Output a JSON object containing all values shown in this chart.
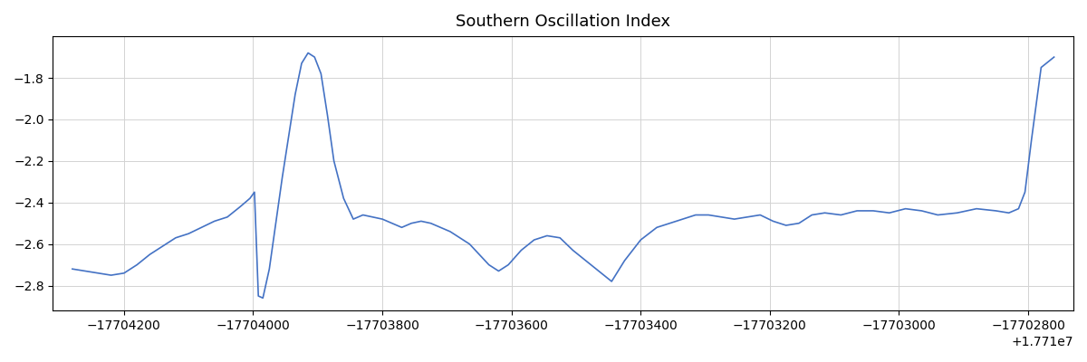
{
  "title": "Southern Oscillation Index",
  "line_color": "#4472c4",
  "xlim": [
    5690,
    7270
  ],
  "ylim": [
    -2.92,
    -1.6
  ],
  "y_ticks": [
    -2.8,
    -2.6,
    -2.4,
    -2.2,
    -2.0,
    -1.8
  ],
  "x_ticks": [
    5800,
    6000,
    6200,
    6400,
    6600,
    6800,
    7000,
    7200
  ],
  "offset_text": "+1.771e7",
  "x": [
    5720,
    5740,
    5760,
    5780,
    5800,
    5820,
    5840,
    5860,
    5880,
    5900,
    5920,
    5940,
    5960,
    5980,
    5995,
    6002,
    6008,
    6015,
    6025,
    6035,
    6045,
    6055,
    6065,
    6075,
    6085,
    6095,
    6105,
    6115,
    6125,
    6140,
    6155,
    6170,
    6185,
    6200,
    6215,
    6230,
    6245,
    6260,
    6275,
    6290,
    6305,
    6320,
    6335,
    6350,
    6365,
    6380,
    6395,
    6415,
    6435,
    6455,
    6475,
    6495,
    6515,
    6535,
    6555,
    6575,
    6600,
    6625,
    6645,
    6665,
    6685,
    6705,
    6725,
    6745,
    6765,
    6785,
    6805,
    6825,
    6845,
    6865,
    6885,
    6910,
    6935,
    6960,
    6985,
    7010,
    7035,
    7060,
    7090,
    7120,
    7150,
    7170,
    7185,
    7195,
    7205,
    7220,
    7240
  ],
  "y": [
    -2.72,
    -2.73,
    -2.74,
    -2.75,
    -2.74,
    -2.7,
    -2.65,
    -2.61,
    -2.57,
    -2.55,
    -2.52,
    -2.49,
    -2.47,
    -2.42,
    -2.38,
    -2.35,
    -2.85,
    -2.86,
    -2.72,
    -2.5,
    -2.28,
    -2.08,
    -1.88,
    -1.73,
    -1.68,
    -1.7,
    -1.78,
    -1.98,
    -2.2,
    -2.38,
    -2.48,
    -2.46,
    -2.47,
    -2.48,
    -2.5,
    -2.52,
    -2.5,
    -2.49,
    -2.5,
    -2.52,
    -2.54,
    -2.57,
    -2.6,
    -2.65,
    -2.7,
    -2.73,
    -2.7,
    -2.63,
    -2.58,
    -2.56,
    -2.57,
    -2.63,
    -2.68,
    -2.73,
    -2.78,
    -2.68,
    -2.58,
    -2.52,
    -2.5,
    -2.48,
    -2.46,
    -2.46,
    -2.47,
    -2.48,
    -2.47,
    -2.46,
    -2.49,
    -2.51,
    -2.5,
    -2.46,
    -2.45,
    -2.46,
    -2.44,
    -2.44,
    -2.45,
    -2.43,
    -2.44,
    -2.46,
    -2.45,
    -2.43,
    -2.44,
    -2.45,
    -2.43,
    -2.35,
    -2.1,
    -1.75,
    -1.7
  ]
}
